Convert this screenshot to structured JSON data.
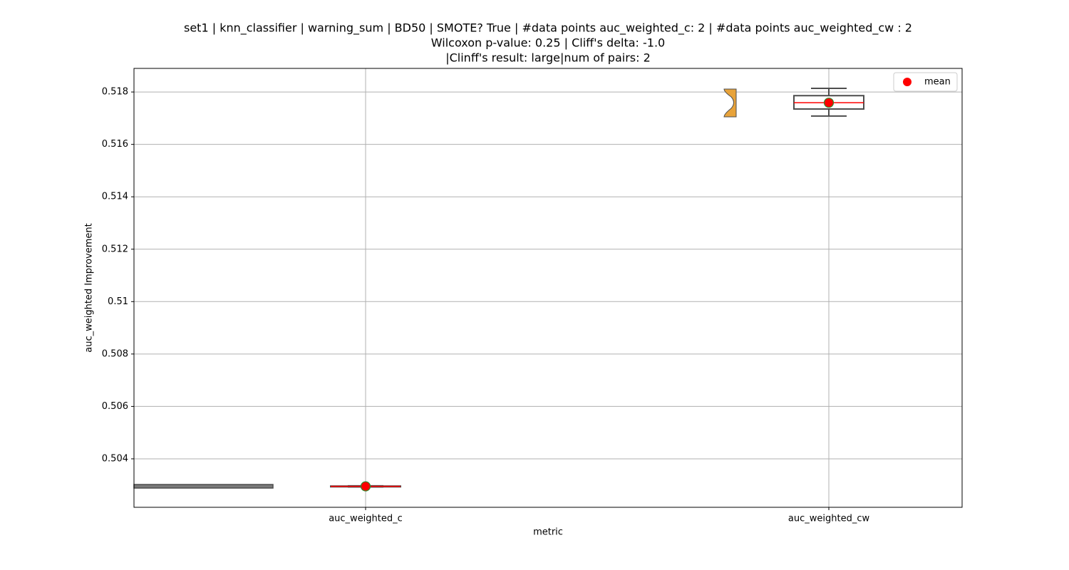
{
  "chart_data": {
    "type": "box",
    "title": [
      "set1 | knn_classifier | warning_sum | BD50 | SMOTE? True | #data points auc_weighted_c: 2 | #data points auc_weighted_cw : 2",
      "Wilcoxon p-value: 0.25 | Cliff's delta: -1.0",
      "|Clinff's result: large|num of pairs: 2"
    ],
    "x_label": "metric",
    "y_label": "auc_weighted Improvement",
    "categories": [
      "auc_weighted_c",
      "auc_weighted_cw"
    ],
    "boxes": [
      {
        "whislo": 0.50293,
        "q1": 0.50294,
        "med": 0.50295,
        "q3": 0.50296,
        "whishi": 0.50297,
        "mean": 0.50295
      },
      {
        "whislo": 0.51708,
        "q1": 0.51735,
        "med": 0.51759,
        "q3": 0.51786,
        "whishi": 0.51814,
        "mean": 0.51759
      }
    ],
    "ylim": [
      0.50215,
      0.5189
    ],
    "yticks": [
      0.504,
      0.506,
      0.508,
      0.51,
      0.512,
      0.514,
      0.516,
      0.518
    ],
    "grid": true,
    "box_edge_color": "#4d4d4d",
    "median_color": "#ff0000",
    "mean_color": "#ff0000",
    "mean_edge_color": "#2e8b2e",
    "legend": {
      "loc": "upper right",
      "label": "mean"
    }
  }
}
